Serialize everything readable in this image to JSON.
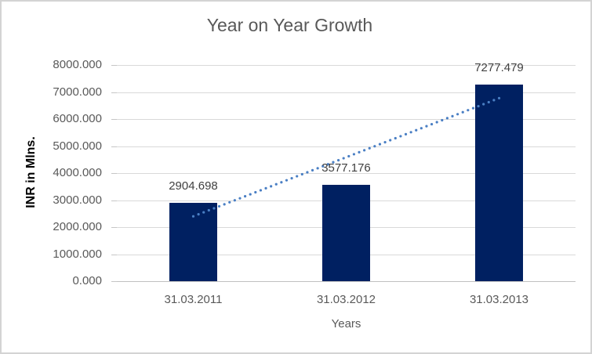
{
  "window": {
    "background": "#FFFFFF",
    "border_color": "#D3D3D3"
  },
  "chart_data": {
    "type": "bar",
    "title": "Year on Year Growth",
    "categories": [
      "31.03.2011",
      "31.03.2012",
      "31.03.2013"
    ],
    "values": [
      2904.698,
      3577.176,
      7277.479
    ],
    "data_labels": [
      "2904.698",
      "3577.176",
      "7277.479"
    ],
    "xlabel": "Years",
    "ylabel": "INR in Mlns.",
    "ylim": [
      0,
      8000
    ],
    "ytick_interval": 1000,
    "yticks": [
      {
        "value": 8000,
        "label": "8000.000"
      },
      {
        "value": 7000,
        "label": "7000.000"
      },
      {
        "value": 6000,
        "label": "6000.000"
      },
      {
        "value": 5000,
        "label": "5000.000"
      },
      {
        "value": 4000,
        "label": "4000.000"
      },
      {
        "value": 3000,
        "label": "3000.000"
      },
      {
        "value": 2000,
        "label": "2000.000"
      },
      {
        "value": 1000,
        "label": "1000.000"
      },
      {
        "value": 0,
        "label": "0.000"
      }
    ],
    "grid": true,
    "legend": "none",
    "trendline": {
      "type": "linear",
      "style": "dotted"
    },
    "colors": {
      "bar": "#002061",
      "trendline": "#4A7FC4",
      "gridline": "#D9D9D9",
      "axis_line": "#C0C0C0",
      "tick_mark": "#C6C6C6",
      "title_text": "#595959",
      "axis_text": "#595959",
      "data_label_text": "#404040",
      "ylabel_text": "#000000"
    }
  }
}
